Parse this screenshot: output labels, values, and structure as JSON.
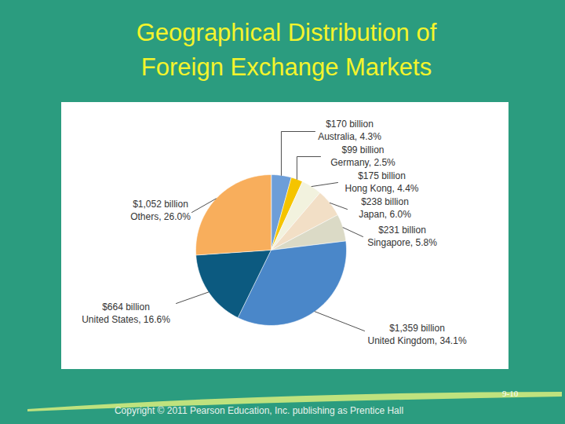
{
  "chart_data": {
    "type": "pie",
    "title": "Geographical Distribution of Foreign Exchange Markets",
    "categories": [
      "Australia",
      "Germany",
      "Hong Kong",
      "Japan",
      "Singapore",
      "United Kingdom",
      "United States",
      "Others"
    ],
    "values": [
      4.3,
      2.5,
      4.4,
      6.0,
      5.8,
      34.1,
      16.6,
      26.0
    ],
    "value_labels": [
      "Australia, 4.3%",
      "Germany, 2.5%",
      "Hong Kong, 4.4%",
      "Japan, 6.0%",
      "Singapore, 5.8%",
      "United Kingdom, 34.1%",
      "United States, 16.6%",
      "Others, 26.0%"
    ],
    "amounts": [
      170,
      99,
      175,
      238,
      231,
      1359,
      664,
      1052
    ],
    "amount_labels": [
      "$170 billion",
      "$99 billion",
      "$175 billion",
      "$238 billion",
      "$231 billion",
      "$1,359 billion",
      "$664 billion",
      "$1,052 billion"
    ],
    "colors": [
      "#6d9ed8",
      "#f5c400",
      "#f2f2de",
      "#f2dfc6",
      "#dbdac6",
      "#4a87c9",
      "#0c5a80",
      "#f8ae5c"
    ],
    "data_labels": true
  },
  "slide": {
    "number": "9-10",
    "copyright": "Copyright © 2011 Pearson Education, Inc. publishing as Prentice Hall"
  }
}
